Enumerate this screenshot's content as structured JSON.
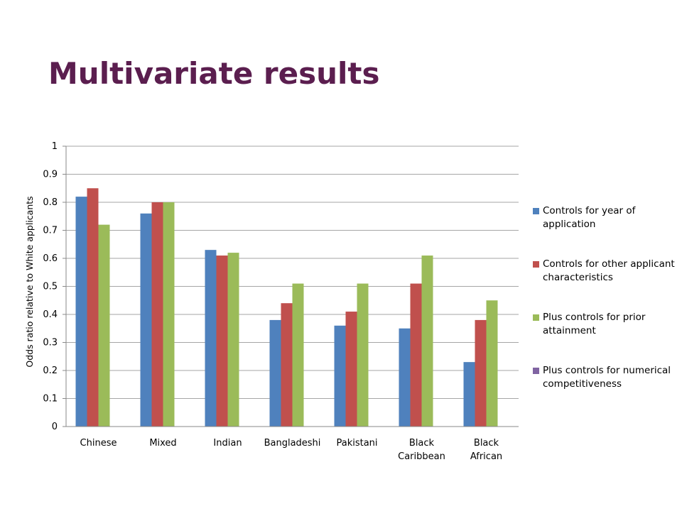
{
  "chart_data": {
    "type": "bar",
    "title": "Multivariate results",
    "y_label": "Odds ratio relative to White applicants",
    "categories": [
      "Chinese",
      "Mixed",
      "Indian",
      "Bangladeshi",
      "Pakistani",
      "Black Caribbean",
      "Black African"
    ],
    "series": [
      {
        "name": "Controls for year of application",
        "color": "#4f81bd",
        "values": [
          0.82,
          0.76,
          0.63,
          0.38,
          0.36,
          0.35,
          0.23
        ]
      },
      {
        "name": "Controls for other applicant characteristics",
        "color": "#c0504d",
        "values": [
          0.85,
          0.8,
          0.61,
          0.44,
          0.41,
          0.51,
          0.38
        ]
      },
      {
        "name": "Plus controls for prior attainment",
        "color": "#9bbb59",
        "values": [
          0.72,
          0.8,
          0.62,
          0.51,
          0.51,
          0.61,
          0.45
        ]
      },
      {
        "name": "Plus controls for numerical competitiveness",
        "color": "#8064a2",
        "values": [
          null,
          null,
          null,
          null,
          null,
          null,
          null
        ]
      }
    ],
    "ylim": [
      0,
      1
    ],
    "yticks": [
      0,
      0.1,
      0.2,
      0.3,
      0.4,
      0.5,
      0.6,
      0.7,
      0.8,
      0.9,
      1
    ],
    "grid": true,
    "legend": "right"
  }
}
